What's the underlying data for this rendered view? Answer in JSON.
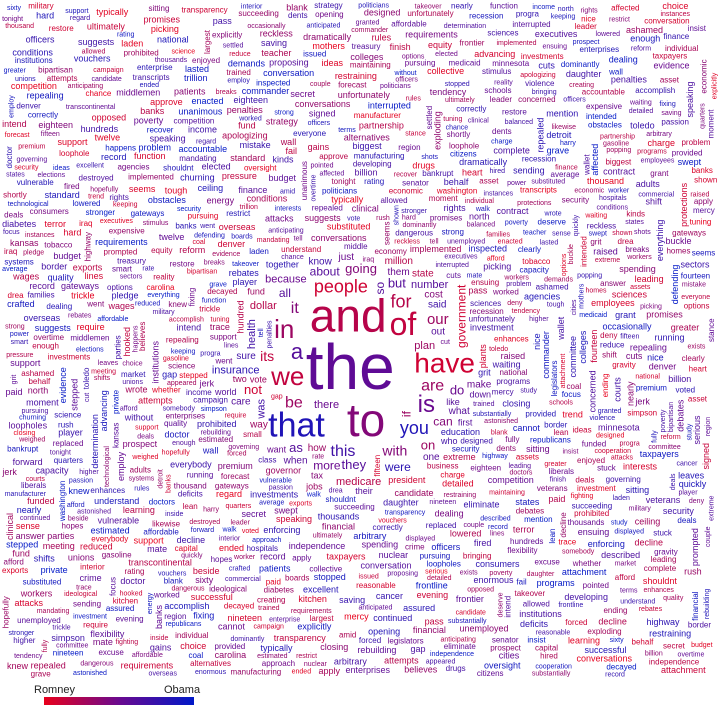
{
  "colors": {
    "left": "#e8001c",
    "mid": "#6a0a8f",
    "right": "#0018c8"
  },
  "legend": {
    "left_label": "Romney",
    "right_label": "Obama"
  },
  "big_words": [
    {
      "text": "the",
      "size": 64,
      "tone": 0.55
    },
    {
      "text": "and",
      "size": 46,
      "tone": 0.2
    },
    {
      "text": "to",
      "size": 46,
      "tone": 0.4
    },
    {
      "text": "that",
      "size": 34,
      "tone": 0.85
    },
    {
      "text": "of",
      "size": 32,
      "tone": 0.15
    },
    {
      "text": "have",
      "size": 28,
      "tone": 0.1
    },
    {
      "text": "we",
      "size": 26,
      "tone": 0.15
    },
    {
      "text": "in",
      "size": 26,
      "tone": 0.3
    },
    {
      "text": "is",
      "size": 24,
      "tone": 0.5
    },
    {
      "text": "a",
      "size": 22,
      "tone": 0.6
    },
    {
      "text": "people",
      "size": 18,
      "tone": 0.1
    },
    {
      "text": "for",
      "size": 18,
      "tone": 0.2
    },
    {
      "text": "you",
      "size": 18,
      "tone": 0.85
    },
    {
      "text": "it",
      "size": 16,
      "tone": 0.4
    },
    {
      "text": "be",
      "size": 16,
      "tone": 0.3
    },
    {
      "text": "this",
      "size": 16,
      "tone": 0.7
    },
    {
      "text": "are",
      "size": 16,
      "tone": 0.3
    },
    {
      "text": "our",
      "size": 15,
      "tone": 0.3
    },
    {
      "text": "with",
      "size": 14,
      "tone": 0.4
    },
    {
      "text": "its",
      "size": 14,
      "tone": 0.15
    },
    {
      "text": "but",
      "size": 13,
      "tone": 0.6
    },
    {
      "text": "they",
      "size": 13,
      "tone": 0.6
    },
    {
      "text": "as",
      "size": 13,
      "tone": 0.6
    },
    {
      "text": "not",
      "size": 13,
      "tone": 0.1
    },
    {
      "text": "do",
      "size": 13,
      "tone": 0.5
    },
    {
      "text": "going",
      "size": 13,
      "tone": 0.4
    },
    {
      "text": "on",
      "size": 13,
      "tone": 0.3
    },
    {
      "text": "all",
      "size": 12,
      "tone": 0.6
    },
    {
      "text": "if",
      "size": 12,
      "tone": 0.3
    },
    {
      "text": "so",
      "size": 12,
      "tone": 0.6
    },
    {
      "text": "were",
      "size": 12,
      "tone": 0.8
    },
    {
      "text": "can",
      "size": 12,
      "tone": 0.4
    },
    {
      "text": "more",
      "size": 12,
      "tone": 0.5
    },
    {
      "text": "about",
      "size": 12,
      "tone": 0.6
    },
    {
      "text": "was",
      "size": 11,
      "tone": 0.7
    },
    {
      "text": "government",
      "size": 12,
      "tone": 0.1
    },
    {
      "text": "health",
      "size": 11,
      "tone": 0.7
    },
    {
      "text": "medicare",
      "size": 11,
      "tone": 0.2
    },
    {
      "text": "number",
      "size": 11,
      "tone": 0.6
    },
    {
      "text": "because",
      "size": 11,
      "tone": 0.5
    },
    {
      "text": "insurance",
      "size": 11,
      "tone": 0.8
    },
    {
      "text": "plan",
      "size": 11,
      "tone": 0.3
    },
    {
      "text": "there",
      "size": 11,
      "tone": 0.5
    },
    {
      "text": "dollar",
      "size": 11,
      "tone": 0.2
    },
    {
      "text": "cost",
      "size": 10,
      "tone": 0.4
    },
    {
      "text": "them",
      "size": 10,
      "tone": 0.5
    },
    {
      "text": "what",
      "size": 10,
      "tone": 0.6
    },
    {
      "text": "when",
      "size": 10,
      "tone": 0.6
    },
    {
      "text": "one",
      "size": 10,
      "tone": 0.6
    },
    {
      "text": "sure",
      "size": 10,
      "tone": 0.7
    },
    {
      "text": "said",
      "size": 10,
      "tone": 0.7
    },
    {
      "text": "out",
      "size": 10,
      "tone": 0.6
    },
    {
      "text": "make",
      "size": 10,
      "tone": 0.5
    },
    {
      "text": "how",
      "size": 10,
      "tone": 0.3
    },
    {
      "text": "just",
      "size": 10,
      "tone": 0.5
    },
    {
      "text": "million",
      "size": 10,
      "tone": 0.2
    },
    {
      "text": "first",
      "size": 9,
      "tone": 0.6
    },
    {
      "text": "way",
      "size": 10,
      "tone": 0.3
    },
    {
      "text": "state",
      "size": 10,
      "tone": 0.2
    },
    {
      "text": "like",
      "size": 9,
      "tone": 0.6
    },
    {
      "text": "know",
      "size": 10,
      "tone": 0.7
    },
    {
      "text": "want",
      "size": 9,
      "tone": 0.5
    },
    {
      "text": "care",
      "size": 10,
      "tone": 0.6
    },
    {
      "text": "president",
      "size": 9,
      "tone": 0.1
    },
    {
      "text": "education",
      "size": 9,
      "tone": 0.8
    },
    {
      "text": "tax",
      "size": 9,
      "tone": 0.4
    },
    {
      "text": "plants",
      "size": 9,
      "tone": 0.1
    },
    {
      "text": "down",
      "size": 9,
      "tone": 0.6
    },
    {
      "text": "who",
      "size": 9,
      "tone": 0.7
    },
    {
      "text": "two",
      "size": 9,
      "tone": 0.3
    },
    {
      "text": "their",
      "size": 9,
      "tone": 0.6
    },
    {
      "text": "hundred",
      "size": 9,
      "tone": 0.2
    },
    {
      "text": "governor",
      "size": 9,
      "tone": 0.3
    },
    {
      "text": "together",
      "size": 9,
      "tone": 0.8
    },
    {
      "text": "jobs",
      "size": 9,
      "tone": 0.3
    },
    {
      "text": "world",
      "size": 9,
      "tone": 0.6
    },
    {
      "text": "economy",
      "size": 8,
      "tone": 0.3
    },
    {
      "text": "business",
      "size": 8,
      "tone": 0.2
    },
    {
      "text": "small",
      "size": 8,
      "tone": 0.2
    },
    {
      "text": "middle",
      "size": 8,
      "tone": 0.6
    },
    {
      "text": "class",
      "size": 8,
      "tone": 0.7
    }
  ],
  "small_words": [
    "understand",
    "trained",
    "require",
    "investment",
    "shouldnt",
    "conversations",
    "lines",
    "candidate",
    "designed",
    "implemented",
    "reckless",
    "sciences",
    "support",
    "vulnerable",
    "security",
    "recession",
    "governing",
    "fund",
    "grit",
    "trace",
    "succeeding",
    "substituted",
    "daughter",
    "extreme",
    "investments",
    "prohibited",
    "substantially",
    "toledo",
    "went",
    "interrupted",
    "forced",
    "cuts",
    "unfortunately",
    "chance",
    "charge",
    "pass",
    "raised",
    "jerk",
    "campaign",
    "exports",
    "seems",
    "thousands",
    "waiting",
    "dangerous",
    "mercy",
    "enhances",
    "simpson",
    "transparency",
    "player",
    "penalties",
    "premium",
    "mandating",
    "programs",
    "tuning",
    "mate",
    "detailed",
    "stepped",
    "rebates",
    "decayed",
    "rush",
    "fifteen",
    "rebuilding",
    "vouchers",
    "financial",
    "astonished",
    "eighteen",
    "nineteen",
    "suggests",
    "forecast",
    "estimated",
    "national",
    "laden",
    "executives",
    "trickle",
    "blank",
    "progra",
    "takeover",
    "ensuing",
    "correctly",
    "closing",
    "anticipating",
    "highway",
    "swept",
    "function",
    "science",
    "repealed",
    "shown",
    "dominantly",
    "ultimately",
    "clinical",
    "dealing",
    "arbitrary",
    "drea",
    "restraining",
    "accomplish",
    "picking",
    "speaking",
    "unemployed",
    "repealing",
    "intend",
    "average",
    "tendency",
    "strong",
    "evidence",
    "fully",
    "keeping",
    "study",
    "typically",
    "wall",
    "attacks",
    "commander",
    "passion",
    "gateways",
    "replaced",
    "income",
    "worked",
    "spending",
    "promises",
    "cannot",
    "eliminate",
    "allowed",
    "enterprises",
    "legislators",
    "denver",
    "enforcing",
    "dents",
    "interests",
    "secret",
    "inspected",
    "bipartisan",
    "somebody",
    "stronger",
    "problem",
    "grave",
    "politicians",
    "competition",
    "nice",
    "fixing",
    "quarters",
    "overseas",
    "breaks",
    "displayed",
    "independence",
    "running",
    "workers",
    "higher",
    "economic",
    "taxpayers",
    "regard",
    "leading",
    "doctor",
    "whether",
    "everybody",
    "provided",
    "rights",
    "institutions",
    "afford",
    "overtime",
    "gasoline",
    "agencies",
    "hopefully",
    "maintaining",
    "attachment",
    "sitting",
    "restrict",
    "quality",
    "unanimous",
    "conditions",
    "tonight",
    "knew",
    "rating",
    "balanced",
    "officers",
    "vote",
    "moment",
    "wallet",
    "north",
    "leader",
    "attempts",
    "conversation",
    "families",
    "thousand",
    "military",
    "appeared",
    "lowered",
    "defending",
    "everything",
    "nuclear",
    "committee",
    "enough",
    "approach",
    "ashamed",
    "couple",
    "republicans",
    "iraq",
    "reform",
    "assets",
    "affected",
    "restore",
    "recover",
    "collective",
    "hospitals",
    "deficits",
    "billion",
    "schools",
    "washington",
    "capacity",
    "harry",
    "apply",
    "finance",
    "described",
    "budget",
    "record",
    "border",
    "senator",
    "enacted",
    "believes",
    "voted",
    "stopped",
    "pursuing",
    "lean",
    "developing",
    "destroyed",
    "trend",
    "carolina",
    "tobacco",
    "behalf",
    "proposing",
    "without",
    "individual",
    "clearly",
    "states",
    "energy",
    "market",
    "deals",
    "colleges",
    "manufacturing",
    "hard",
    "focus",
    "pointed",
    "prospect",
    "reality",
    "interior",
    "reduced",
    "gap",
    "greater",
    "record",
    "pursuing",
    "patients",
    "support",
    "choice",
    "drugs",
    "concerned",
    "loopholes",
    "detroit",
    "debates",
    "cut",
    "issued",
    "reasonable",
    "cities",
    "tell",
    "wrote",
    "poverty",
    "banks",
    "liberals",
    "contract",
    "happens",
    "fired",
    "trillion",
    "excellent",
    "options",
    "pressure",
    "weighed",
    "forward",
    "hooked",
    "unions",
    "ended",
    "teacher",
    "veterans",
    "oversight",
    "ideas",
    "approve",
    "mothers",
    "terror",
    "fourteen",
    "twelve",
    "equity",
    "biggest",
    "boards",
    "frontline",
    "worker",
    "bringing",
    "instances",
    "afford",
    "crime",
    "insist",
    "gains",
    "mention",
    "heart",
    "exists",
    "crafted",
    "bankrupt",
    "security",
    "ceiling",
    "inside",
    "lasted",
    "funded",
    "kinds",
    "parties",
    "cancer",
    "region",
    "pledge",
    "amid",
    "asset",
    "medicaid",
    "finish",
    "kitchen",
    "alternatives",
    "serious",
    "likewise",
    "dramatically",
    "doctors",
    "commercial",
    "everyone",
    "decline",
    "hopes",
    "sectors",
    "adults",
    "consumers",
    "ending",
    "demands",
    "rate",
    "stimulus",
    "hundreds",
    "private",
    "treasury",
    "enjoyed",
    "standard",
    "deserve",
    "wages",
    "homes",
    "paid",
    "banks",
    "affordable",
    "fail",
    "diabetes",
    "buckle",
    "saving",
    "shots",
    "evening",
    "popping",
    "advancing",
    "anticipated",
    "kansas",
    "obstacles",
    "meeting",
    "courts",
    "elected",
    "violence",
    "enormous",
    "protections",
    "deals",
    "shift",
    "options",
    "requirements",
    "mistake",
    "decline",
    "employees",
    "citizens",
    "leaves",
    "partnership",
    "assured",
    "officers",
    "continued",
    "flexibility",
    "opposed",
    "stance",
    "intended",
    "employ",
    "capital",
    "ideological",
    "reduce",
    "learning",
    "gateways",
    "walk",
    "shifts",
    "stuck",
    "rules",
    "largest",
    "elections",
    "exploding",
    "frontier",
    "quickly",
    "beside",
    "hired",
    "nearly",
    "loophole",
    "signed",
    "tough",
    "technological",
    "minnesota",
    "gravity",
    "apologizing",
    "opening",
    "coal",
    "creating",
    "transcripts",
    "manufacturer",
    "poverty",
    "transcontinental",
    "systems",
    "requirements",
    "terms",
    "power",
    "middlemen",
    "explicitly",
    "complete",
    "smart",
    "determination",
    "churning",
    "deny",
    "granted",
    "grant",
    "prompted",
    "sixty",
    "affordable",
    "occasionally",
    "expensive",
    "strategy",
    "sending",
    "fighting",
    "settled",
    "shortly",
    "answer",
    "sense",
    "excuse",
    "successful",
    "cooperation",
    "accountable",
    "enterprise"
  ]
}
